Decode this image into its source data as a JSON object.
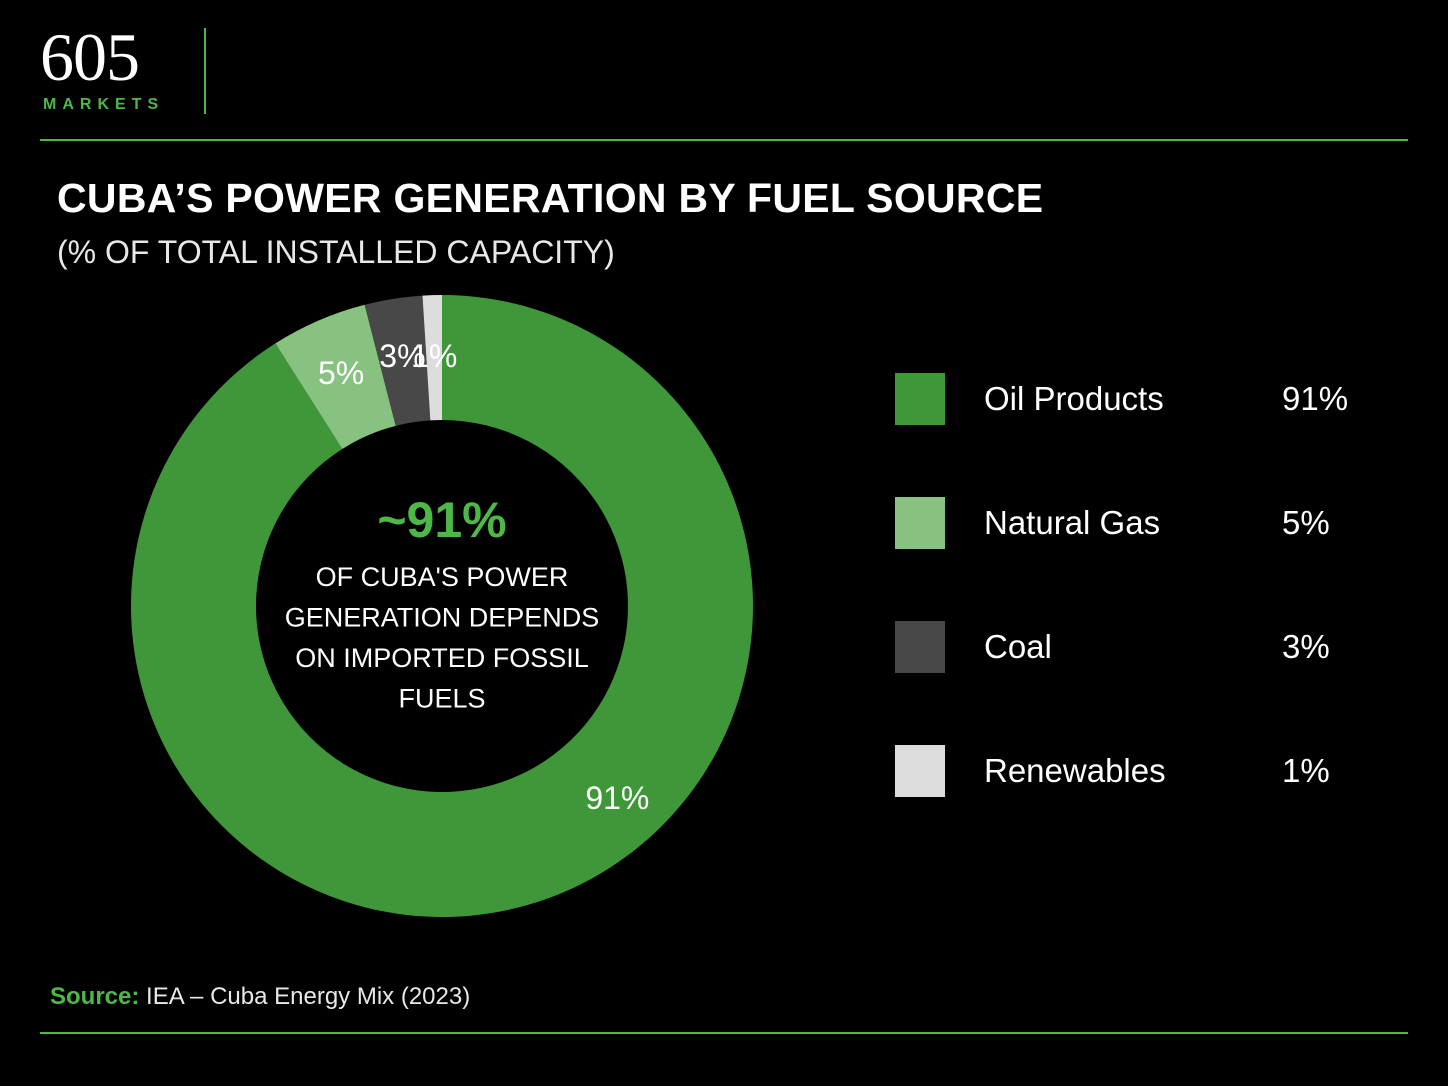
{
  "brand": {
    "number": "605",
    "word": "MARKETS",
    "accent_color": "#4db848"
  },
  "chart_data": {
    "type": "pie",
    "title": "CUBA’S POWER GENERATION BY FUEL SOURCE",
    "subtitle": "(% OF TOTAL INSTALLED CAPACITY)",
    "slices": [
      {
        "name": "Oil Products",
        "value": 91,
        "label": "91%",
        "color": "#3f973a"
      },
      {
        "name": "Natural Gas",
        "value": 5,
        "label": "5%",
        "color": "#88c281"
      },
      {
        "name": "Coal",
        "value": 3,
        "label": "3%",
        "color": "#484848"
      },
      {
        "name": "Renewables",
        "value": 1,
        "label": "1%",
        "color": "#dddddd"
      }
    ],
    "center": {
      "value": "~91%",
      "lines": [
        "OF CUBA'S POWER",
        "GENERATION DEPENDS",
        "ON IMPORTED FOSSIL",
        "FUELS"
      ]
    },
    "legend_position": "right"
  },
  "source": {
    "label": "Source:",
    "text": "IEA – Cuba Energy Mix (2023)"
  }
}
